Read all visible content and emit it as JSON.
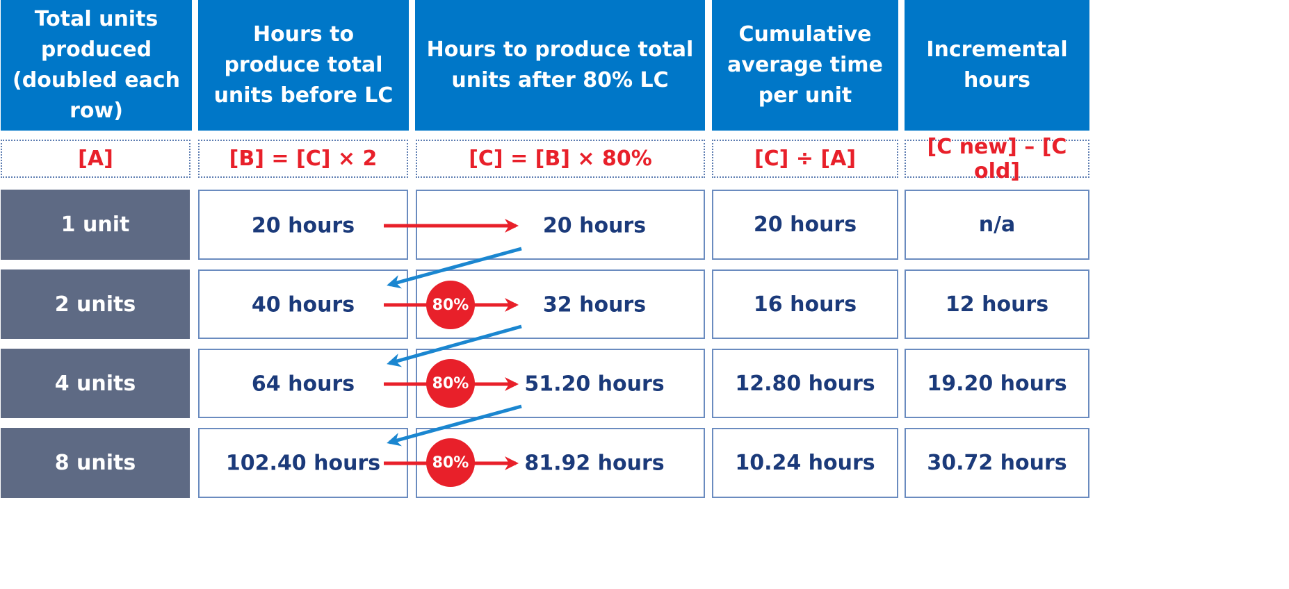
{
  "headers": [
    "Total units produced (doubled each row)",
    "Hours to produce total units before LC",
    "Hours to produce total units after 80% LC",
    "Cumulative average time per unit",
    "Incremental hours"
  ],
  "formulas": [
    "[A]",
    "[B] = [C] × 2",
    "[C] = [B] × 80%",
    "[C] ÷ [A]",
    "[C new] – [C old]"
  ],
  "rows": [
    {
      "units": "1 unit",
      "before": "20 hours",
      "after": "20 hours",
      "avg": "20 hours",
      "incr": "n/a",
      "badge": ""
    },
    {
      "units": "2 units",
      "before": "40 hours",
      "after": "32 hours",
      "avg": "16 hours",
      "incr": "12 hours",
      "badge": "80%"
    },
    {
      "units": "4 units",
      "before": "64 hours",
      "after": "51.20 hours",
      "avg": "12.80 hours",
      "incr": "19.20 hours",
      "badge": "80%"
    },
    {
      "units": "8 units",
      "before": "102.40 hours",
      "after": "81.92 hours",
      "avg": "10.24 hours",
      "incr": "30.72 hours",
      "badge": "80%"
    }
  ],
  "colors": {
    "header_bg": "#0077c8",
    "row_label_bg": "#5e6a84",
    "formula_text": "#e8202a",
    "value_text": "#1b3a7a",
    "arrow_red": "#e8202a",
    "arrow_blue": "#1a86d0"
  }
}
